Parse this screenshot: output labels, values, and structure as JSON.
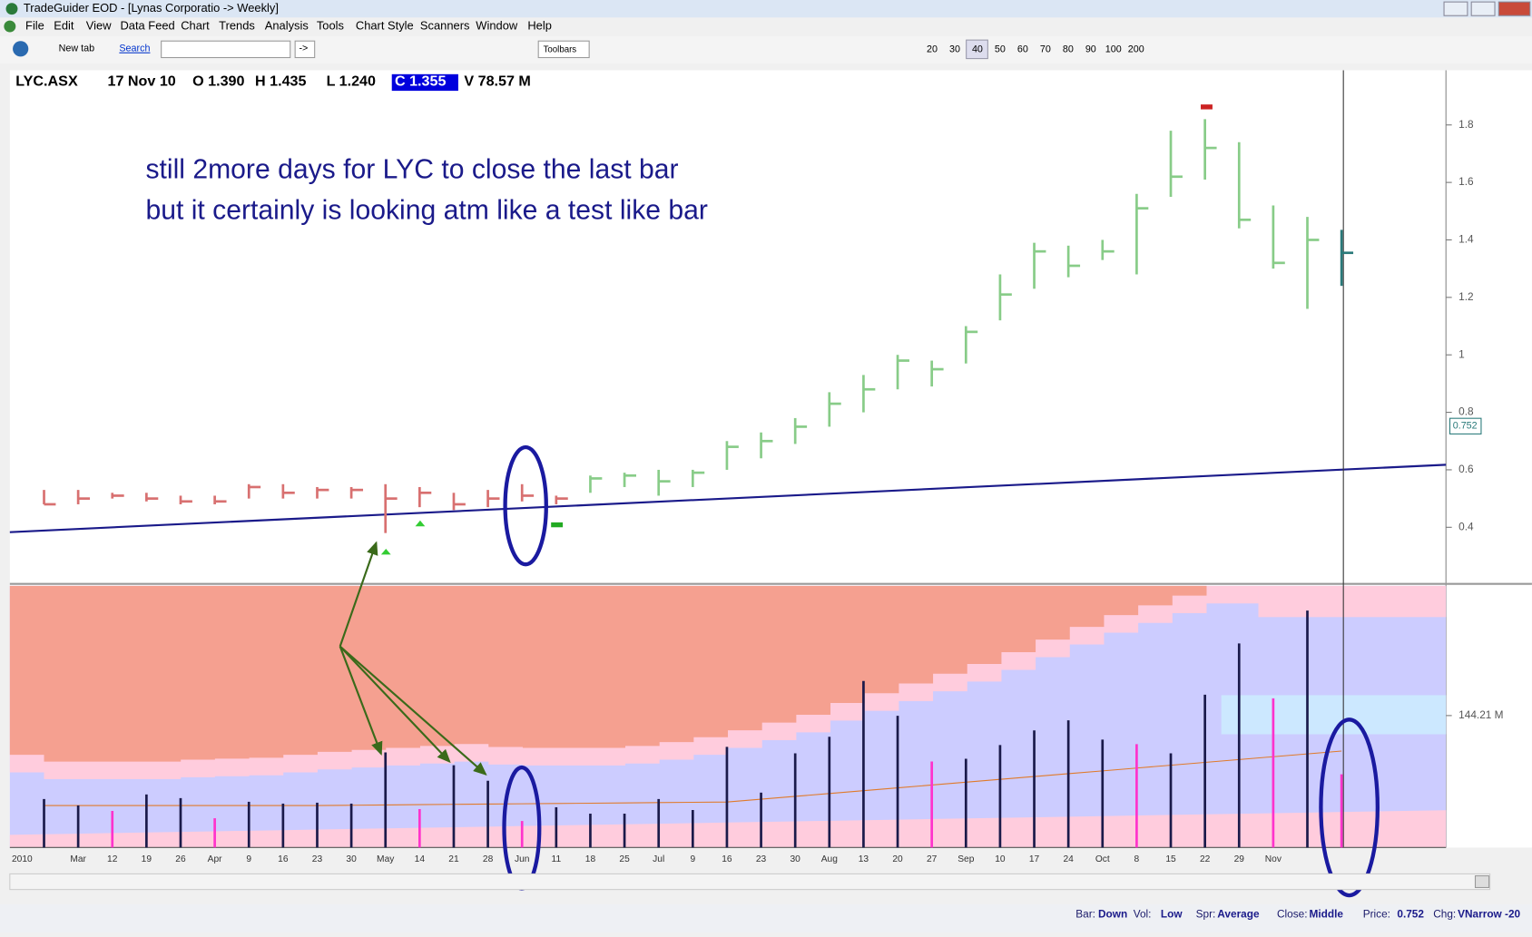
{
  "window": {
    "title": "TradeGuider EOD - [Lynas Corporatio -> Weekly]",
    "menu": [
      "File",
      "Edit",
      "View",
      "Data Feed",
      "Chart",
      "Trends",
      "Analysis",
      "Tools",
      "Chart Style",
      "Scanners",
      "Window",
      "Help"
    ]
  },
  "toolbar": {
    "new_tab": "New tab",
    "search": "Search",
    "go": "->",
    "toolbars": "Toolbars",
    "zoom": [
      "20",
      "30",
      "40",
      "50",
      "60",
      "70",
      "80",
      "90",
      "100",
      "200"
    ]
  },
  "chart_data": {
    "type": "ohlc",
    "header": [
      "LYC.ASX",
      "17 Nov 10",
      "O 1.390",
      "H 1.435",
      "L 1.240",
      "C 1.355",
      "V 78.57 M"
    ],
    "annotation": [
      "still 2more days for LYC to close the last bar",
      "but it certainly is looking atm like a test like bar"
    ],
    "year_label": "2010",
    "categories": [
      null,
      "Mar",
      "12",
      "19",
      "26",
      "Apr",
      "9",
      "16",
      "23",
      "30",
      "May",
      "14",
      "21",
      "28",
      "Jun",
      "11",
      "18",
      "25",
      "Jul",
      "9",
      "16",
      "23",
      "30",
      "Aug",
      "13",
      "20",
      "27",
      "Sep",
      "10",
      "17",
      "24",
      "Oct",
      "8",
      "15",
      "22",
      "29",
      "Nov",
      null,
      null
    ],
    "high": [
      0.53,
      0.53,
      0.52,
      0.52,
      0.51,
      0.51,
      0.55,
      0.55,
      0.54,
      0.54,
      0.55,
      0.54,
      0.52,
      0.53,
      0.55,
      0.51,
      0.58,
      0.59,
      0.6,
      0.6,
      0.7,
      0.73,
      0.78,
      0.87,
      0.93,
      1.0,
      0.98,
      1.1,
      1.28,
      1.39,
      1.38,
      1.4,
      1.56,
      1.78,
      1.82,
      1.74,
      1.52,
      1.48,
      1.435
    ],
    "low": [
      0.48,
      0.48,
      0.5,
      0.49,
      0.48,
      0.48,
      0.5,
      0.5,
      0.5,
      0.5,
      0.38,
      0.47,
      0.46,
      0.47,
      0.49,
      0.48,
      0.52,
      0.54,
      0.51,
      0.54,
      0.6,
      0.64,
      0.69,
      0.75,
      0.8,
      0.88,
      0.89,
      0.97,
      1.12,
      1.23,
      1.27,
      1.33,
      1.28,
      1.55,
      1.61,
      1.44,
      1.3,
      1.16,
      1.24
    ],
    "close": [
      0.48,
      0.5,
      0.51,
      0.5,
      0.49,
      0.49,
      0.54,
      0.52,
      0.53,
      0.53,
      0.5,
      0.52,
      0.48,
      0.5,
      0.51,
      0.5,
      0.57,
      0.58,
      0.56,
      0.59,
      0.68,
      0.7,
      0.75,
      0.83,
      0.88,
      0.98,
      0.95,
      1.08,
      1.21,
      1.36,
      1.31,
      1.36,
      1.51,
      1.62,
      1.72,
      1.47,
      1.32,
      1.4,
      1.355
    ],
    "colors": [
      "#d87070",
      "#d87070",
      "#d87070",
      "#d87070",
      "#d87070",
      "#d87070",
      "#d87070",
      "#d87070",
      "#d87070",
      "#d87070",
      "#d87070",
      "#d87070",
      "#d87070",
      "#d87070",
      "#d87070",
      "#d87070",
      "#88cc88",
      "#88cc88",
      "#88cc88",
      "#88cc88",
      "#88cc88",
      "#88cc88",
      "#88cc88",
      "#88cc88",
      "#88cc88",
      "#88cc88",
      "#88cc88",
      "#88cc88",
      "#88cc88",
      "#88cc88",
      "#88cc88",
      "#88cc88",
      "#88cc88",
      "#88cc88",
      "#88cc88",
      "#88cc88",
      "#88cc88",
      "#88cc88",
      "#2a7a7a"
    ],
    "ylim": [
      0.2,
      2.0
    ],
    "yticks": [
      0.4,
      0.6,
      0.8,
      1,
      1.2,
      1.4,
      1.6,
      1.8
    ],
    "price_marker": {
      "value": 0.752,
      "label": "0.752"
    },
    "volume": {
      "values": [
        53,
        46,
        40,
        58,
        54,
        32,
        50,
        48,
        49,
        48,
        104,
        42,
        90,
        73,
        29,
        44,
        37,
        37,
        53,
        41,
        110,
        60,
        103,
        121,
        182,
        144,
        94,
        97,
        112,
        128,
        139,
        118,
        113,
        103,
        167,
        223,
        163,
        259,
        80
      ],
      "colors": [
        "#1a1a4a",
        "#1a1a4a",
        "#ff33cc",
        "#1a1a4a",
        "#1a1a4a",
        "#ff33cc",
        "#1a1a4a",
        "#1a1a4a",
        "#1a1a4a",
        "#1a1a4a",
        "#1a1a4a",
        "#ff33cc",
        "#1a1a4a",
        "#1a1a4a",
        "#ff33cc",
        "#1a1a4a",
        "#1a1a4a",
        "#1a1a4a",
        "#1a1a4a",
        "#1a1a4a",
        "#1a1a4a",
        "#1a1a4a",
        "#1a1a4a",
        "#1a1a4a",
        "#1a1a4a",
        "#1a1a4a",
        "#ff33cc",
        "#1a1a4a",
        "#1a1a4a",
        "#1a1a4a",
        "#1a1a4a",
        "#1a1a4a",
        "#ff33cc",
        "#1a1a4a",
        "#1a1a4a",
        "#1a1a4a",
        "#ff33cc",
        "#1a1a4a",
        "#ff33cc"
      ],
      "ylim": [
        0,
        286
      ],
      "yticks": [
        {
          "value": 144.21,
          "label": "144.21 M"
        }
      ]
    }
  },
  "status": [
    {
      "label": "Bar:",
      "value": "Down"
    },
    {
      "label": "Vol:",
      "value": "Low"
    },
    {
      "label": "Spr:",
      "value": "Average"
    },
    {
      "label": "Close:",
      "value": "Middle"
    },
    {
      "label": "Price:",
      "value": "0.752"
    },
    {
      "label": "Chg:",
      "value": "VNarrow -20"
    }
  ]
}
